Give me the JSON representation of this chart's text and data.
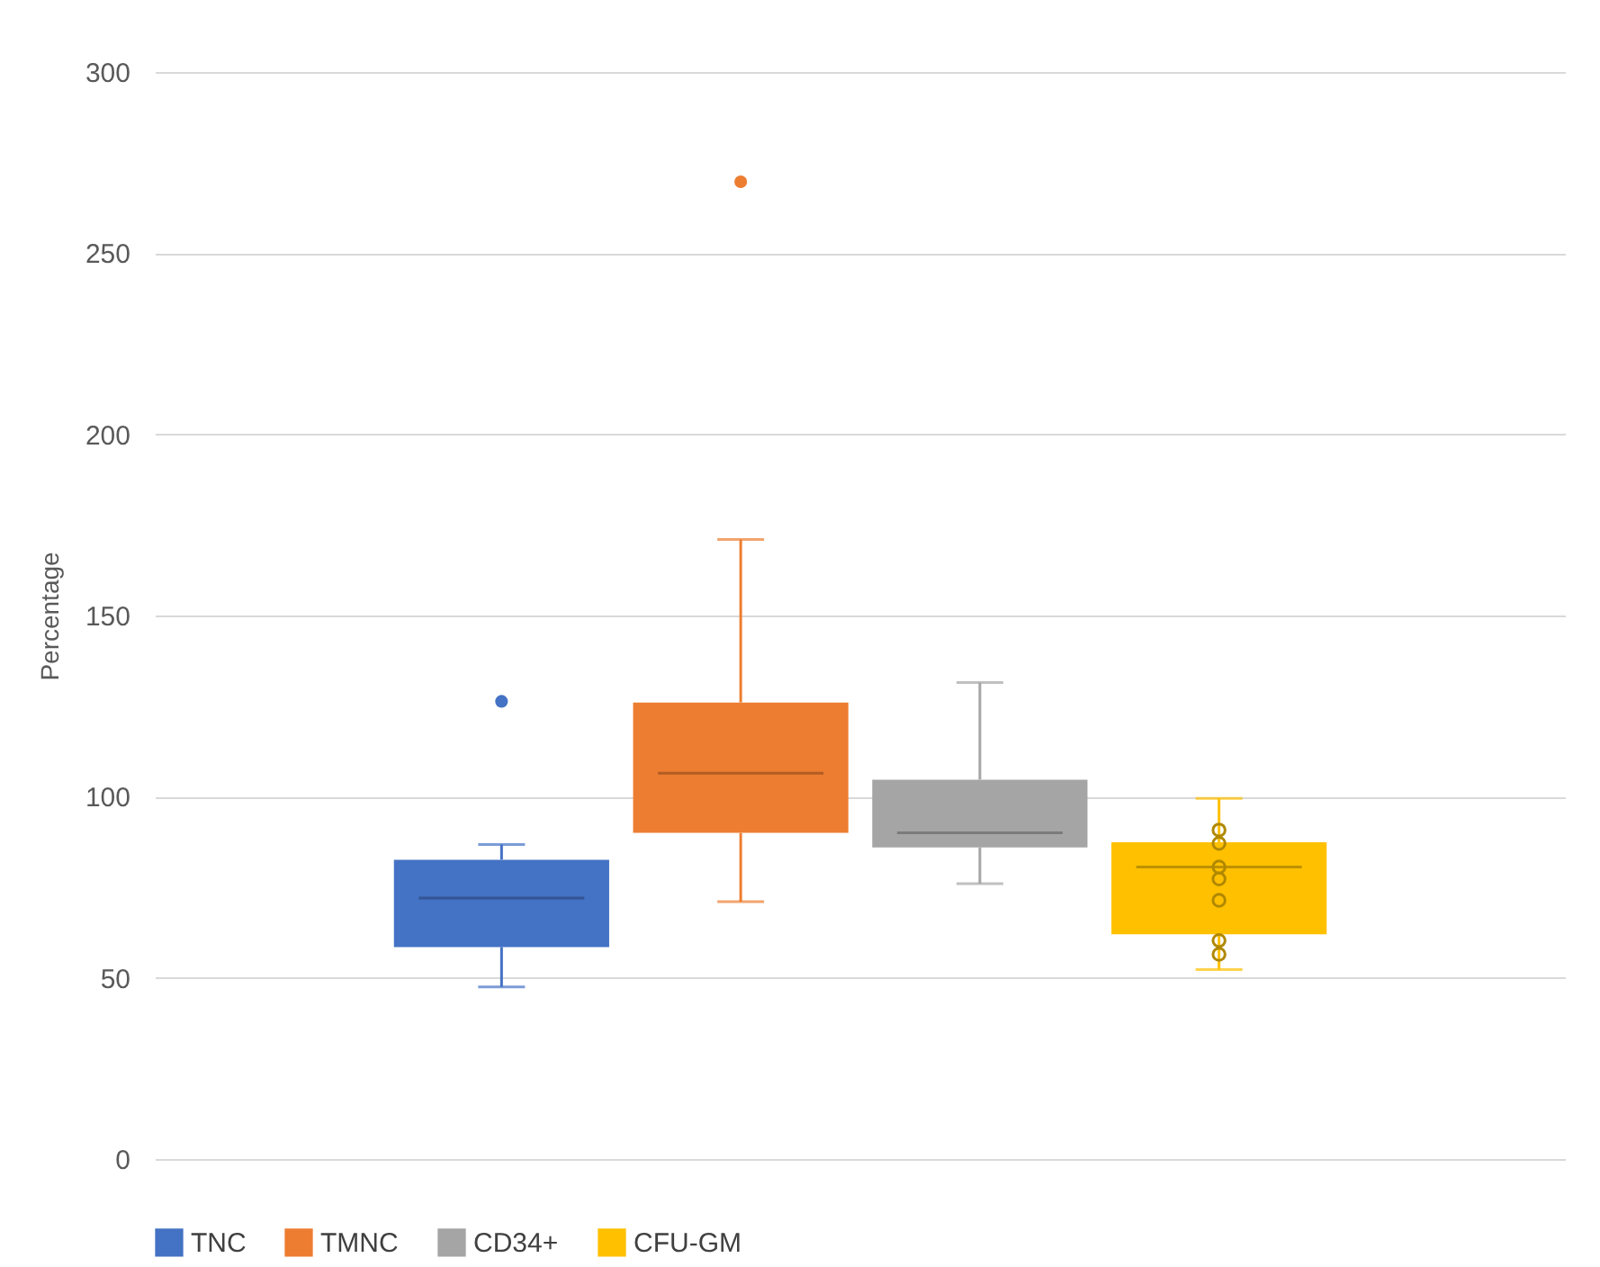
{
  "chart_data": {
    "type": "box",
    "ylabel": "Percentage",
    "categories": [
      null
    ],
    "ylim": [
      0,
      300
    ],
    "yticks": [
      0,
      50,
      100,
      150,
      200,
      250,
      300
    ],
    "grid": "y",
    "legend": "bottom",
    "tick_labels": "y",
    "series": [
      {
        "name": "TNC",
        "color": "#4472c4",
        "boxes": [
          {
            "low": 47.5,
            "q1": 58.5,
            "median": 72,
            "q3": 82.6,
            "high": 86.8,
            "outliers": [
              126.3
            ]
          }
        ]
      },
      {
        "name": "TMNC",
        "color": "#ed7d31",
        "boxes": [
          {
            "low": 71,
            "q1": 90,
            "median": 106.5,
            "q3": 126,
            "high": 171,
            "outliers": [
              269.7
            ]
          }
        ]
      },
      {
        "name": "CD34+",
        "color": "#a5a5a5",
        "boxes": [
          {
            "low": 76,
            "q1": 86,
            "median": 90,
            "q3": 104.7,
            "high": 131.5
          }
        ]
      },
      {
        "name": "CFU-GM",
        "color": "#ffc000",
        "boxes": [
          {
            "low": 52.3,
            "q1": 62,
            "median": 80.6,
            "q3": 87.4,
            "high": 99.5
          }
        ]
      },
      {
        "type": "scatter",
        "color": "#b08800",
        "marker": "circle",
        "x": [
          null,
          null,
          null,
          null,
          null,
          null,
          null
        ],
        "values": [
          90.8,
          87.1,
          80.6,
          77.3,
          71.4,
          60.3,
          56.5
        ]
      }
    ]
  }
}
